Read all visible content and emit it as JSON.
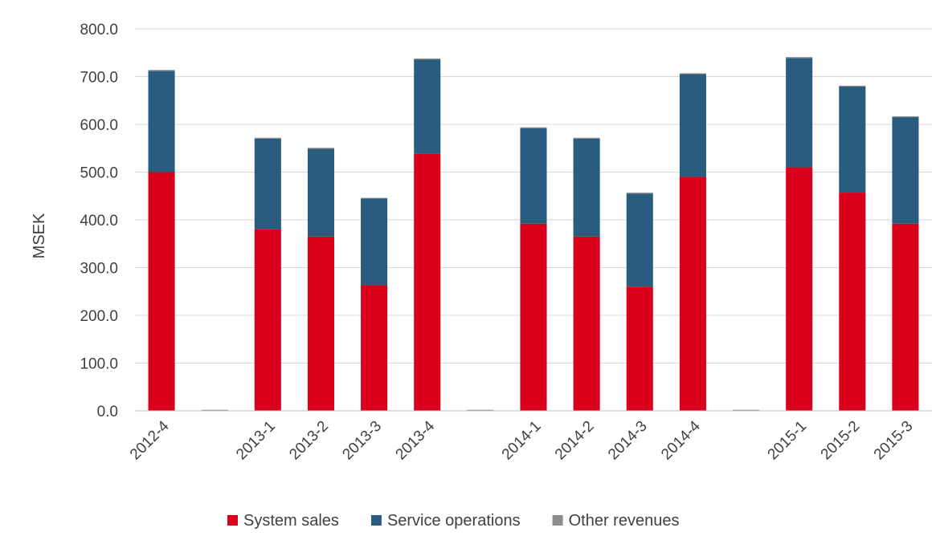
{
  "chart_data": {
    "type": "bar",
    "stacked": true,
    "ylabel": "MSEK",
    "ylim": [
      0,
      800
    ],
    "yticks": [
      "0.0",
      "100.0",
      "200.0",
      "300.0",
      "400.0",
      "500.0",
      "600.0",
      "700.0",
      "800.0"
    ],
    "grid": true,
    "legend_position": "bottom",
    "categories": [
      "2012-4",
      "",
      "2013-1",
      "2013-2",
      "2013-3",
      "2013-4",
      "",
      "2014-1",
      "2014-2",
      "2014-3",
      "2014-4",
      "",
      "2015-1",
      "2015-2",
      "2015-3"
    ],
    "series": [
      {
        "name": "System sales",
        "color": "#d9001b",
        "values": [
          500,
          0,
          380,
          365,
          263,
          538,
          0,
          392,
          365,
          260,
          490,
          0,
          510,
          457,
          392
        ]
      },
      {
        "name": "Service operations",
        "color": "#2a5c80",
        "values": [
          212,
          0,
          190,
          184,
          182,
          198,
          0,
          200,
          205,
          195,
          215,
          0,
          229,
          222,
          223
        ]
      },
      {
        "name": "Other revenues",
        "color": "#8c8c8c",
        "values": [
          2,
          2,
          2,
          2,
          1,
          2,
          2,
          2,
          2,
          2,
          2,
          2,
          2,
          2,
          2
        ]
      }
    ]
  }
}
